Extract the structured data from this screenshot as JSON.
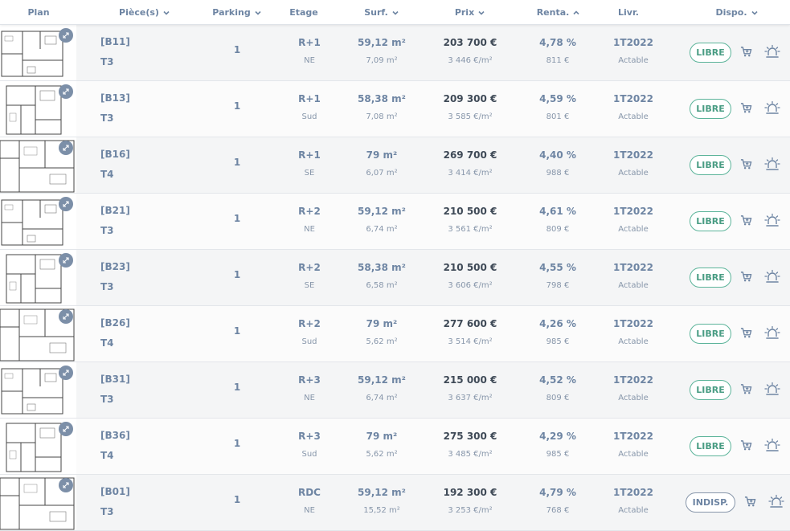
{
  "header": {
    "plan": "Plan",
    "pieces": "Pièce(s)",
    "parking": "Parking",
    "etage": "Etage",
    "surf": "Surf.",
    "prix": "Prix",
    "renta": "Renta.",
    "livr": "Livr.",
    "dispo": "Dispo."
  },
  "icons": {
    "sort_down": "chevron-down-icon",
    "sort_up": "chevron-up-icon",
    "expand": "expand-icon",
    "cart": "cart-icon",
    "alarm": "alarm-icon"
  },
  "colors": {
    "label": "#6e85a3",
    "price": "#3f4a57",
    "available": "#4a9d84",
    "unavailable": "#6e85a3"
  },
  "rows": [
    {
      "ref": "[B11]",
      "type": "T3",
      "parking": "1",
      "floor": "R+1",
      "orientation": "NE",
      "surface": "59,12 m²",
      "surface_sub": "7,09 m²",
      "price": "203 700 €",
      "price_m2": "3 446 €/m²",
      "yield": "4,78 %",
      "rent": "811 €",
      "delivery": "1T2022",
      "delivery_sub": "Actable",
      "status": "LIBRE"
    },
    {
      "ref": "[B13]",
      "type": "T3",
      "parking": "1",
      "floor": "R+1",
      "orientation": "Sud",
      "surface": "58,38 m²",
      "surface_sub": "7,08 m²",
      "price": "209 300 €",
      "price_m2": "3 585 €/m²",
      "yield": "4,59 %",
      "rent": "801 €",
      "delivery": "1T2022",
      "delivery_sub": "Actable",
      "status": "LIBRE"
    },
    {
      "ref": "[B16]",
      "type": "T4",
      "parking": "1",
      "floor": "R+1",
      "orientation": "SE",
      "surface": "79 m²",
      "surface_sub": "6,07 m²",
      "price": "269 700 €",
      "price_m2": "3 414 €/m²",
      "yield": "4,40 %",
      "rent": "988 €",
      "delivery": "1T2022",
      "delivery_sub": "Actable",
      "status": "LIBRE"
    },
    {
      "ref": "[B21]",
      "type": "T3",
      "parking": "1",
      "floor": "R+2",
      "orientation": "NE",
      "surface": "59,12 m²",
      "surface_sub": "6,74 m²",
      "price": "210 500 €",
      "price_m2": "3 561 €/m²",
      "yield": "4,61 %",
      "rent": "809 €",
      "delivery": "1T2022",
      "delivery_sub": "Actable",
      "status": "LIBRE"
    },
    {
      "ref": "[B23]",
      "type": "T3",
      "parking": "1",
      "floor": "R+2",
      "orientation": "SE",
      "surface": "58,38 m²",
      "surface_sub": "6,58 m²",
      "price": "210 500 €",
      "price_m2": "3 606 €/m²",
      "yield": "4,55 %",
      "rent": "798 €",
      "delivery": "1T2022",
      "delivery_sub": "Actable",
      "status": "LIBRE"
    },
    {
      "ref": "[B26]",
      "type": "T4",
      "parking": "1",
      "floor": "R+2",
      "orientation": "Sud",
      "surface": "79 m²",
      "surface_sub": "5,62 m²",
      "price": "277 600 €",
      "price_m2": "3 514 €/m²",
      "yield": "4,26 %",
      "rent": "985 €",
      "delivery": "1T2022",
      "delivery_sub": "Actable",
      "status": "LIBRE"
    },
    {
      "ref": "[B31]",
      "type": "T3",
      "parking": "1",
      "floor": "R+3",
      "orientation": "NE",
      "surface": "59,12 m²",
      "surface_sub": "6,74 m²",
      "price": "215 000 €",
      "price_m2": "3 637 €/m²",
      "yield": "4,52 %",
      "rent": "809 €",
      "delivery": "1T2022",
      "delivery_sub": "Actable",
      "status": "LIBRE"
    },
    {
      "ref": "[B36]",
      "type": "T4",
      "parking": "1",
      "floor": "R+3",
      "orientation": "Sud",
      "surface": "79 m²",
      "surface_sub": "5,62 m²",
      "price": "275 300 €",
      "price_m2": "3 485 €/m²",
      "yield": "4,29 %",
      "rent": "985 €",
      "delivery": "1T2022",
      "delivery_sub": "Actable",
      "status": "LIBRE"
    },
    {
      "ref": "[B01]",
      "type": "T3",
      "parking": "1",
      "floor": "RDC",
      "orientation": "NE",
      "surface": "59,12 m²",
      "surface_sub": "15,52 m²",
      "price": "192 300 €",
      "price_m2": "3 253 €/m²",
      "yield": "4,79 %",
      "rent": "768 €",
      "delivery": "1T2022",
      "delivery_sub": "Actable",
      "status": "INDISP."
    }
  ]
}
